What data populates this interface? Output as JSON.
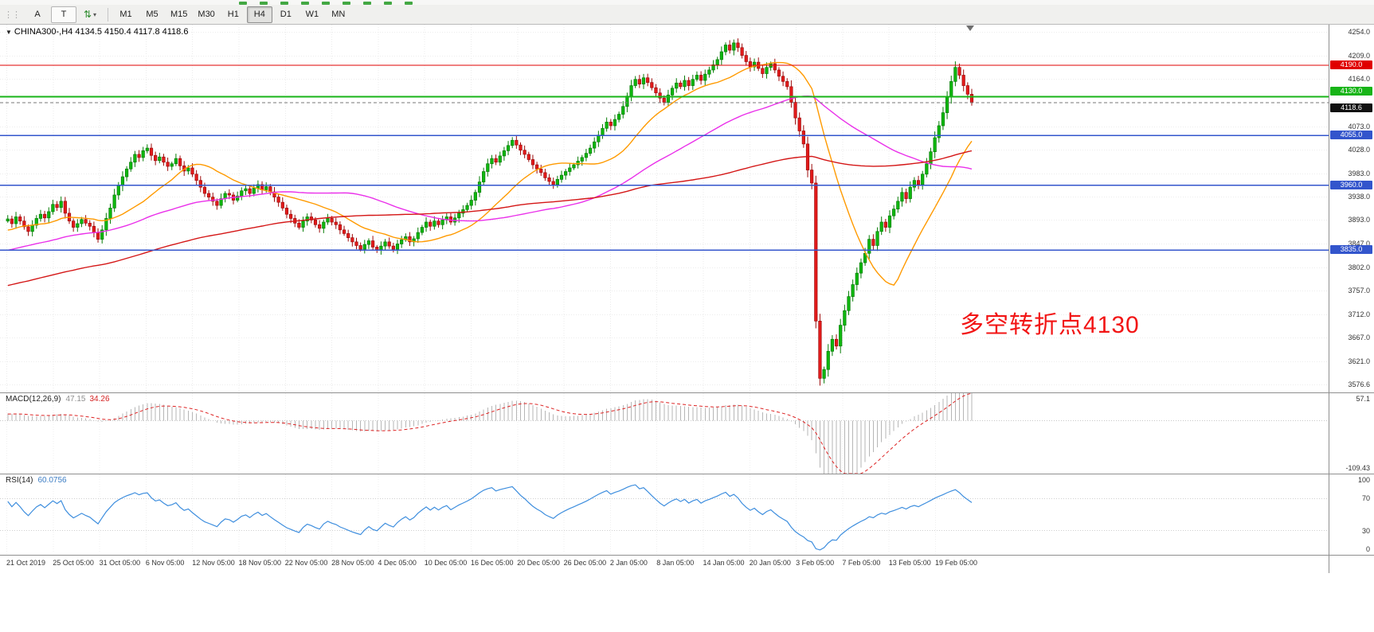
{
  "toolbar": {
    "tool_a_label": "A",
    "tool_t_label": "T",
    "arrows_icon_glyph": "⇅",
    "caret_glyph": "▾",
    "timeframes": [
      "M1",
      "M5",
      "M15",
      "M30",
      "H1",
      "H4",
      "D1",
      "W1",
      "MN"
    ],
    "active_timeframe": "H4"
  },
  "chart": {
    "title_line": "CHINA300-,H4 4134.5 4150.4 4117.8 4118.6",
    "symbol": "CHINA300-",
    "period": "H4",
    "ohlc": {
      "open": "4134.5",
      "high": "4150.4",
      "low": "4117.8",
      "close": "4118.6"
    },
    "annotation": {
      "text": "多空转折点4130",
      "color": "#f21515"
    },
    "price_axis_ticks": [
      "4254.0",
      "4209.0",
      "4164.0",
      "4073.0",
      "4028.0",
      "3983.0",
      "3938.0",
      "3893.0",
      "3847.0",
      "3802.0",
      "3757.0",
      "3712.0",
      "3667.0",
      "3621.0",
      "3576.6"
    ],
    "levels": [
      {
        "price": 4190.0,
        "label": "4190.0",
        "color": "#e00000",
        "width": 1.2
      },
      {
        "price": 4130.0,
        "label": "4130.0",
        "color": "#18b418",
        "width": 2
      },
      {
        "price": 4055.0,
        "label": "4055.0",
        "color": "#3355cc",
        "width": 1.6
      },
      {
        "price": 3960.0,
        "label": "3960.0",
        "color": "#3355cc",
        "width": 1.6
      },
      {
        "price": 3835.0,
        "label": "3835.0",
        "color": "#3355cc",
        "width": 1.6
      }
    ],
    "current_price": {
      "value": 4118.6,
      "label": "4118.6",
      "badge_color": "#111111"
    }
  },
  "chart_data": {
    "type": "candlestick",
    "symbol": "CHINA300-",
    "timeframe": "H4",
    "price_range": [
      3562,
      4268
    ],
    "up_color": "#0fb80f",
    "down_color": "#e41b1b",
    "moving_averages": [
      {
        "period": 20,
        "color": "#ff9a00"
      },
      {
        "period": 60,
        "color": "#ea30ea"
      },
      {
        "period": 130,
        "color": "#d41616"
      }
    ],
    "closes": [
      3895,
      3886,
      3899,
      3891,
      3880,
      3871,
      3883,
      3896,
      3904,
      3897,
      3909,
      3923,
      3917,
      3929,
      3906,
      3891,
      3879,
      3886,
      3894,
      3887,
      3881,
      3869,
      3856,
      3874,
      3896,
      3916,
      3941,
      3959,
      3976,
      3991,
      4004,
      4019,
      4013,
      4026,
      4031,
      4017,
      4007,
      4014,
      4004,
      3996,
      4001,
      4011,
      3997,
      3987,
      3993,
      3981,
      3969,
      3956,
      3944,
      3937,
      3929,
      3921,
      3934,
      3944,
      3941,
      3931,
      3939,
      3949,
      3953,
      3944,
      3954,
      3961,
      3951,
      3957,
      3947,
      3937,
      3927,
      3916,
      3904,
      3896,
      3887,
      3879,
      3891,
      3899,
      3893,
      3884,
      3877,
      3889,
      3896,
      3889,
      3884,
      3874,
      3867,
      3859,
      3851,
      3844,
      3837,
      3846,
      3853,
      3841,
      3835,
      3843,
      3851,
      3843,
      3837,
      3847,
      3855,
      3861,
      3851,
      3857,
      3869,
      3879,
      3889,
      3881,
      3891,
      3884,
      3893,
      3899,
      3889,
      3897,
      3906,
      3913,
      3921,
      3931,
      3946,
      3966,
      3986,
      4001,
      4011,
      4004,
      4016,
      4026,
      4036,
      4046,
      4037,
      4027,
      4019,
      4009,
      3999,
      3991,
      3984,
      3974,
      3967,
      3961,
      3971,
      3979,
      3986,
      3993,
      3999,
      4006,
      4013,
      4021,
      4031,
      4043,
      4056,
      4069,
      4081,
      4074,
      4086,
      4096,
      4111,
      4131,
      4151,
      4163,
      4154,
      4166,
      4157,
      4147,
      4137,
      4127,
      4119,
      4133,
      4146,
      4156,
      4149,
      4161,
      4151,
      4163,
      4171,
      4161,
      4173,
      4181,
      4191,
      4201,
      4216,
      4229,
      4219,
      4233,
      4224,
      4209,
      4197,
      4187,
      4196,
      4184,
      4174,
      4186,
      4193,
      4181,
      4169,
      4159,
      4149,
      4119,
      4089,
      4064,
      4039,
      3989,
      3964,
      3699,
      3589,
      3606,
      3641,
      3664,
      3651,
      3691,
      3719,
      3746,
      3769,
      3791,
      3811,
      3829,
      3856,
      3844,
      3871,
      3889,
      3879,
      3901,
      3914,
      3929,
      3946,
      3934,
      3956,
      3969,
      3961,
      3981,
      4001,
      4024,
      4051,
      4074,
      4099,
      4129,
      4159,
      4186,
      4171,
      4151,
      4134.5,
      4118.6
    ]
  },
  "macd": {
    "name": "MACD(12,26,9)",
    "value_main": "47.15",
    "value_signal": "34.26",
    "params": [
      12,
      26,
      9
    ],
    "range": [
      -109.43,
      57.1
    ],
    "ticks": [
      "57.1",
      "-109.43"
    ],
    "histogram_color": "#b6b6b6",
    "signal_color": "#dd2222"
  },
  "rsi": {
    "name": "RSI(14)",
    "value": "60.0756",
    "period": 14,
    "range": [
      0,
      100
    ],
    "ticks": [
      "100",
      "70",
      "30",
      "0"
    ],
    "level_lines": [
      70,
      30
    ],
    "line_color": "#3e8ede"
  },
  "time_axis": {
    "labels": [
      "21 Oct 2019",
      "25 Oct 05:00",
      "31 Oct 05:00",
      "6 Nov 05:00",
      "12 Nov 05:00",
      "18 Nov 05:00",
      "22 Nov 05:00",
      "28 Nov 05:00",
      "4 Dec 05:00",
      "10 Dec 05:00",
      "16 Dec 05:00",
      "20 Dec 05:00",
      "26 Dec 05:00",
      "2 Jan 05:00",
      "8 Jan 05:00",
      "14 Jan 05:00",
      "20 Jan 05:00",
      "3 Feb 05:00",
      "7 Feb 05:00",
      "13 Feb 05:00",
      "19 Feb 05:00"
    ]
  }
}
